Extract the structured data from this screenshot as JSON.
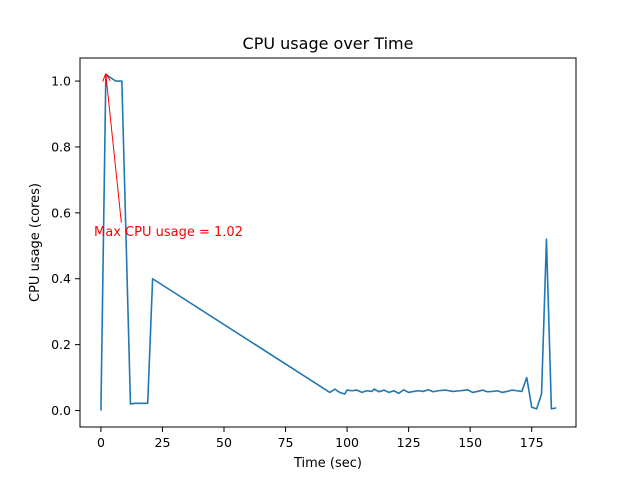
{
  "chart_data": {
    "type": "line",
    "title": "CPU usage over Time",
    "xlabel": "Time (sec)",
    "ylabel": "CPU usage (cores)",
    "xlim": [
      -8.5,
      193
    ],
    "ylim": [
      -0.05,
      1.07
    ],
    "xticks": [
      0,
      25,
      50,
      75,
      100,
      125,
      150,
      175
    ],
    "yticks": [
      0.0,
      0.2,
      0.4,
      0.6,
      0.8,
      1.0
    ],
    "xtick_labels": [
      "0",
      "25",
      "50",
      "75",
      "100",
      "125",
      "150",
      "175"
    ],
    "ytick_labels": [
      "0.0",
      "0.2",
      "0.4",
      "0.6",
      "0.8",
      "1.0"
    ],
    "grid": false,
    "line_color": "#1f77b4",
    "annotation_color": "#ff0000",
    "series": [
      {
        "x": [
          0,
          2,
          4,
          6,
          8.5,
          12,
          14,
          16,
          19,
          21,
          93,
          95,
          97,
          99,
          100,
          102,
          104,
          106,
          108,
          110,
          111,
          113,
          115,
          117,
          119,
          121,
          123,
          125,
          127,
          129,
          131,
          133,
          135,
          137,
          140,
          143,
          146,
          149,
          151,
          153,
          155,
          157,
          159,
          161,
          163,
          165,
          167,
          169,
          171,
          173,
          175,
          177,
          179,
          181,
          183,
          185
        ],
        "y": [
          0.0,
          1.02,
          1.01,
          1.0,
          1.0,
          0.02,
          0.022,
          0.022,
          0.022,
          0.4,
          0.055,
          0.065,
          0.055,
          0.05,
          0.062,
          0.06,
          0.062,
          0.055,
          0.06,
          0.058,
          0.065,
          0.057,
          0.062,
          0.055,
          0.06,
          0.052,
          0.063,
          0.055,
          0.058,
          0.06,
          0.058,
          0.063,
          0.057,
          0.06,
          0.062,
          0.058,
          0.06,
          0.063,
          0.055,
          0.058,
          0.062,
          0.057,
          0.058,
          0.06,
          0.055,
          0.058,
          0.062,
          0.06,
          0.058,
          0.1,
          0.01,
          0.005,
          0.05,
          0.52,
          0.005,
          0.008
        ]
      }
    ],
    "annotation": {
      "text": "Max CPU usage = 1.02",
      "text_at": [
        -2.8,
        0.53
      ],
      "arrow_from": [
        8.3,
        0.57
      ],
      "arrow_to": [
        2,
        1.02
      ]
    }
  }
}
